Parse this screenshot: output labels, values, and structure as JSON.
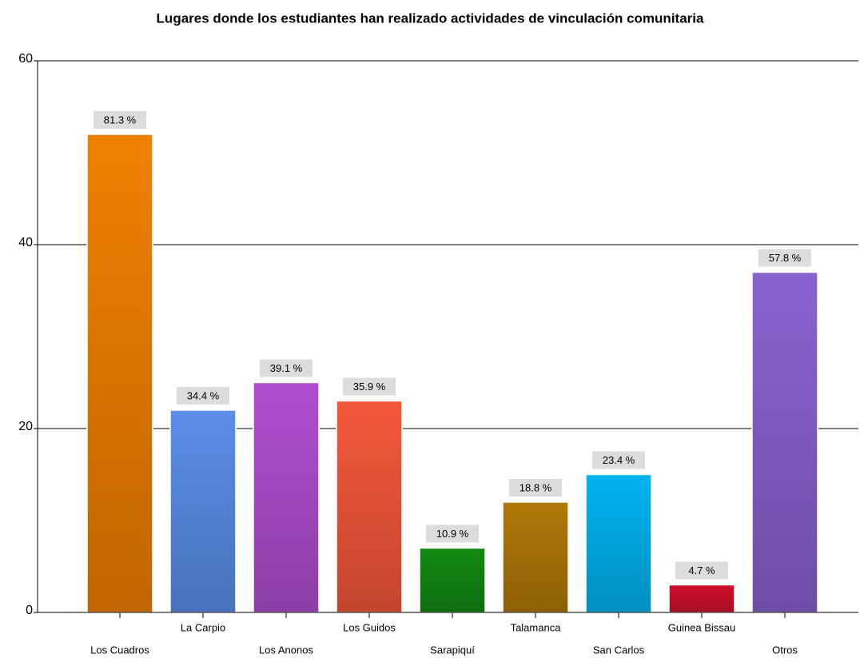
{
  "chart_data": {
    "type": "bar",
    "title": "Lugares  donde los estudiantes han realizado actividades de vinculación comunitaria",
    "categories": [
      "Los Cuadros",
      "La Carpio",
      "Los Anonos",
      "Los Guidos",
      "Sarapiquí",
      "Talamanca",
      "San Carlos",
      "Guinea Bissau",
      "Otros"
    ],
    "values": [
      52,
      22,
      25,
      23,
      7,
      12,
      15,
      3,
      37
    ],
    "annotations": [
      "81.3 %",
      "34.4 %",
      "39.1 %",
      "35.9 %",
      "10.9 %",
      "18.8 %",
      "23.4 %",
      "4.7 %",
      "57.8 %"
    ],
    "colors": [
      "#f08000",
      "#5a8ee8",
      "#b04ed0",
      "#f4583a",
      "#128a12",
      "#b07808",
      "#00b4f0",
      "#d0102c",
      "#8a62d0"
    ],
    "ylim": [
      0,
      60
    ],
    "yticks": [
      0,
      20,
      40,
      60
    ],
    "grid": true
  }
}
